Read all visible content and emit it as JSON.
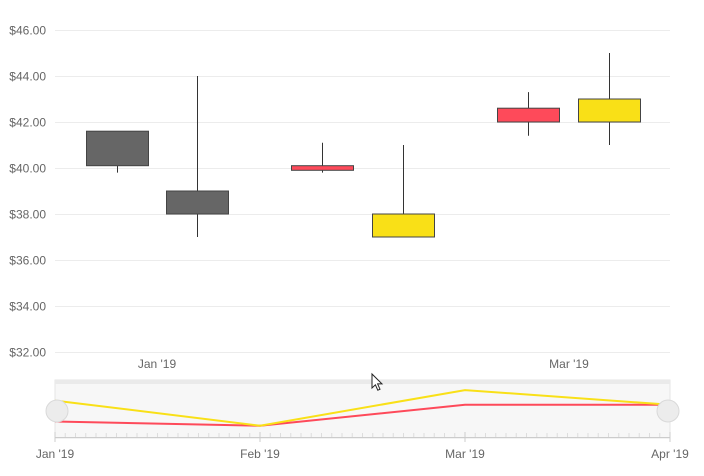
{
  "chart_data": {
    "type": "candlestick",
    "y_axis": {
      "min": 32,
      "max": 46,
      "ticks": [
        32,
        34,
        36,
        38,
        40,
        42,
        44,
        46
      ],
      "tick_labels": [
        "$32.00",
        "$34.00",
        "$36.00",
        "$38.00",
        "$40.00",
        "$42.00",
        "$44.00",
        "$46.00"
      ]
    },
    "x_axis": {
      "tick_labels": [
        "Jan '19",
        "Mar '19"
      ]
    },
    "candles": [
      {
        "open": 41.6,
        "close": 40.1,
        "high": 41.6,
        "low": 39.8,
        "color": "#666666"
      },
      {
        "open": 39.0,
        "close": 38.0,
        "high": 44.0,
        "low": 37.0,
        "color": "#666666"
      },
      {
        "open": 40.1,
        "close": 39.9,
        "high": 41.1,
        "low": 39.8,
        "color": "#fe4a5a"
      },
      {
        "open": 38.0,
        "close": 37.0,
        "high": 41.0,
        "low": 37.0,
        "color": "#f9e017"
      },
      {
        "open": 42.6,
        "close": 42.0,
        "high": 43.3,
        "low": 41.4,
        "color": "#fe4a5a"
      },
      {
        "open": 43.0,
        "close": 42.0,
        "high": 45.0,
        "low": 41.0,
        "color": "#f9e017"
      }
    ],
    "navigator": {
      "tick_labels": [
        "Jan '19",
        "Feb '19",
        "Mar '19",
        "Apr '19"
      ],
      "series": [
        {
          "values": [
            40.0,
            39.8,
            40.8,
            40.8
          ],
          "color": "#fe4a5a"
        },
        {
          "values": [
            41.0,
            39.8,
            41.5,
            40.8
          ],
          "color": "#f9e017"
        }
      ]
    },
    "grid": true
  }
}
